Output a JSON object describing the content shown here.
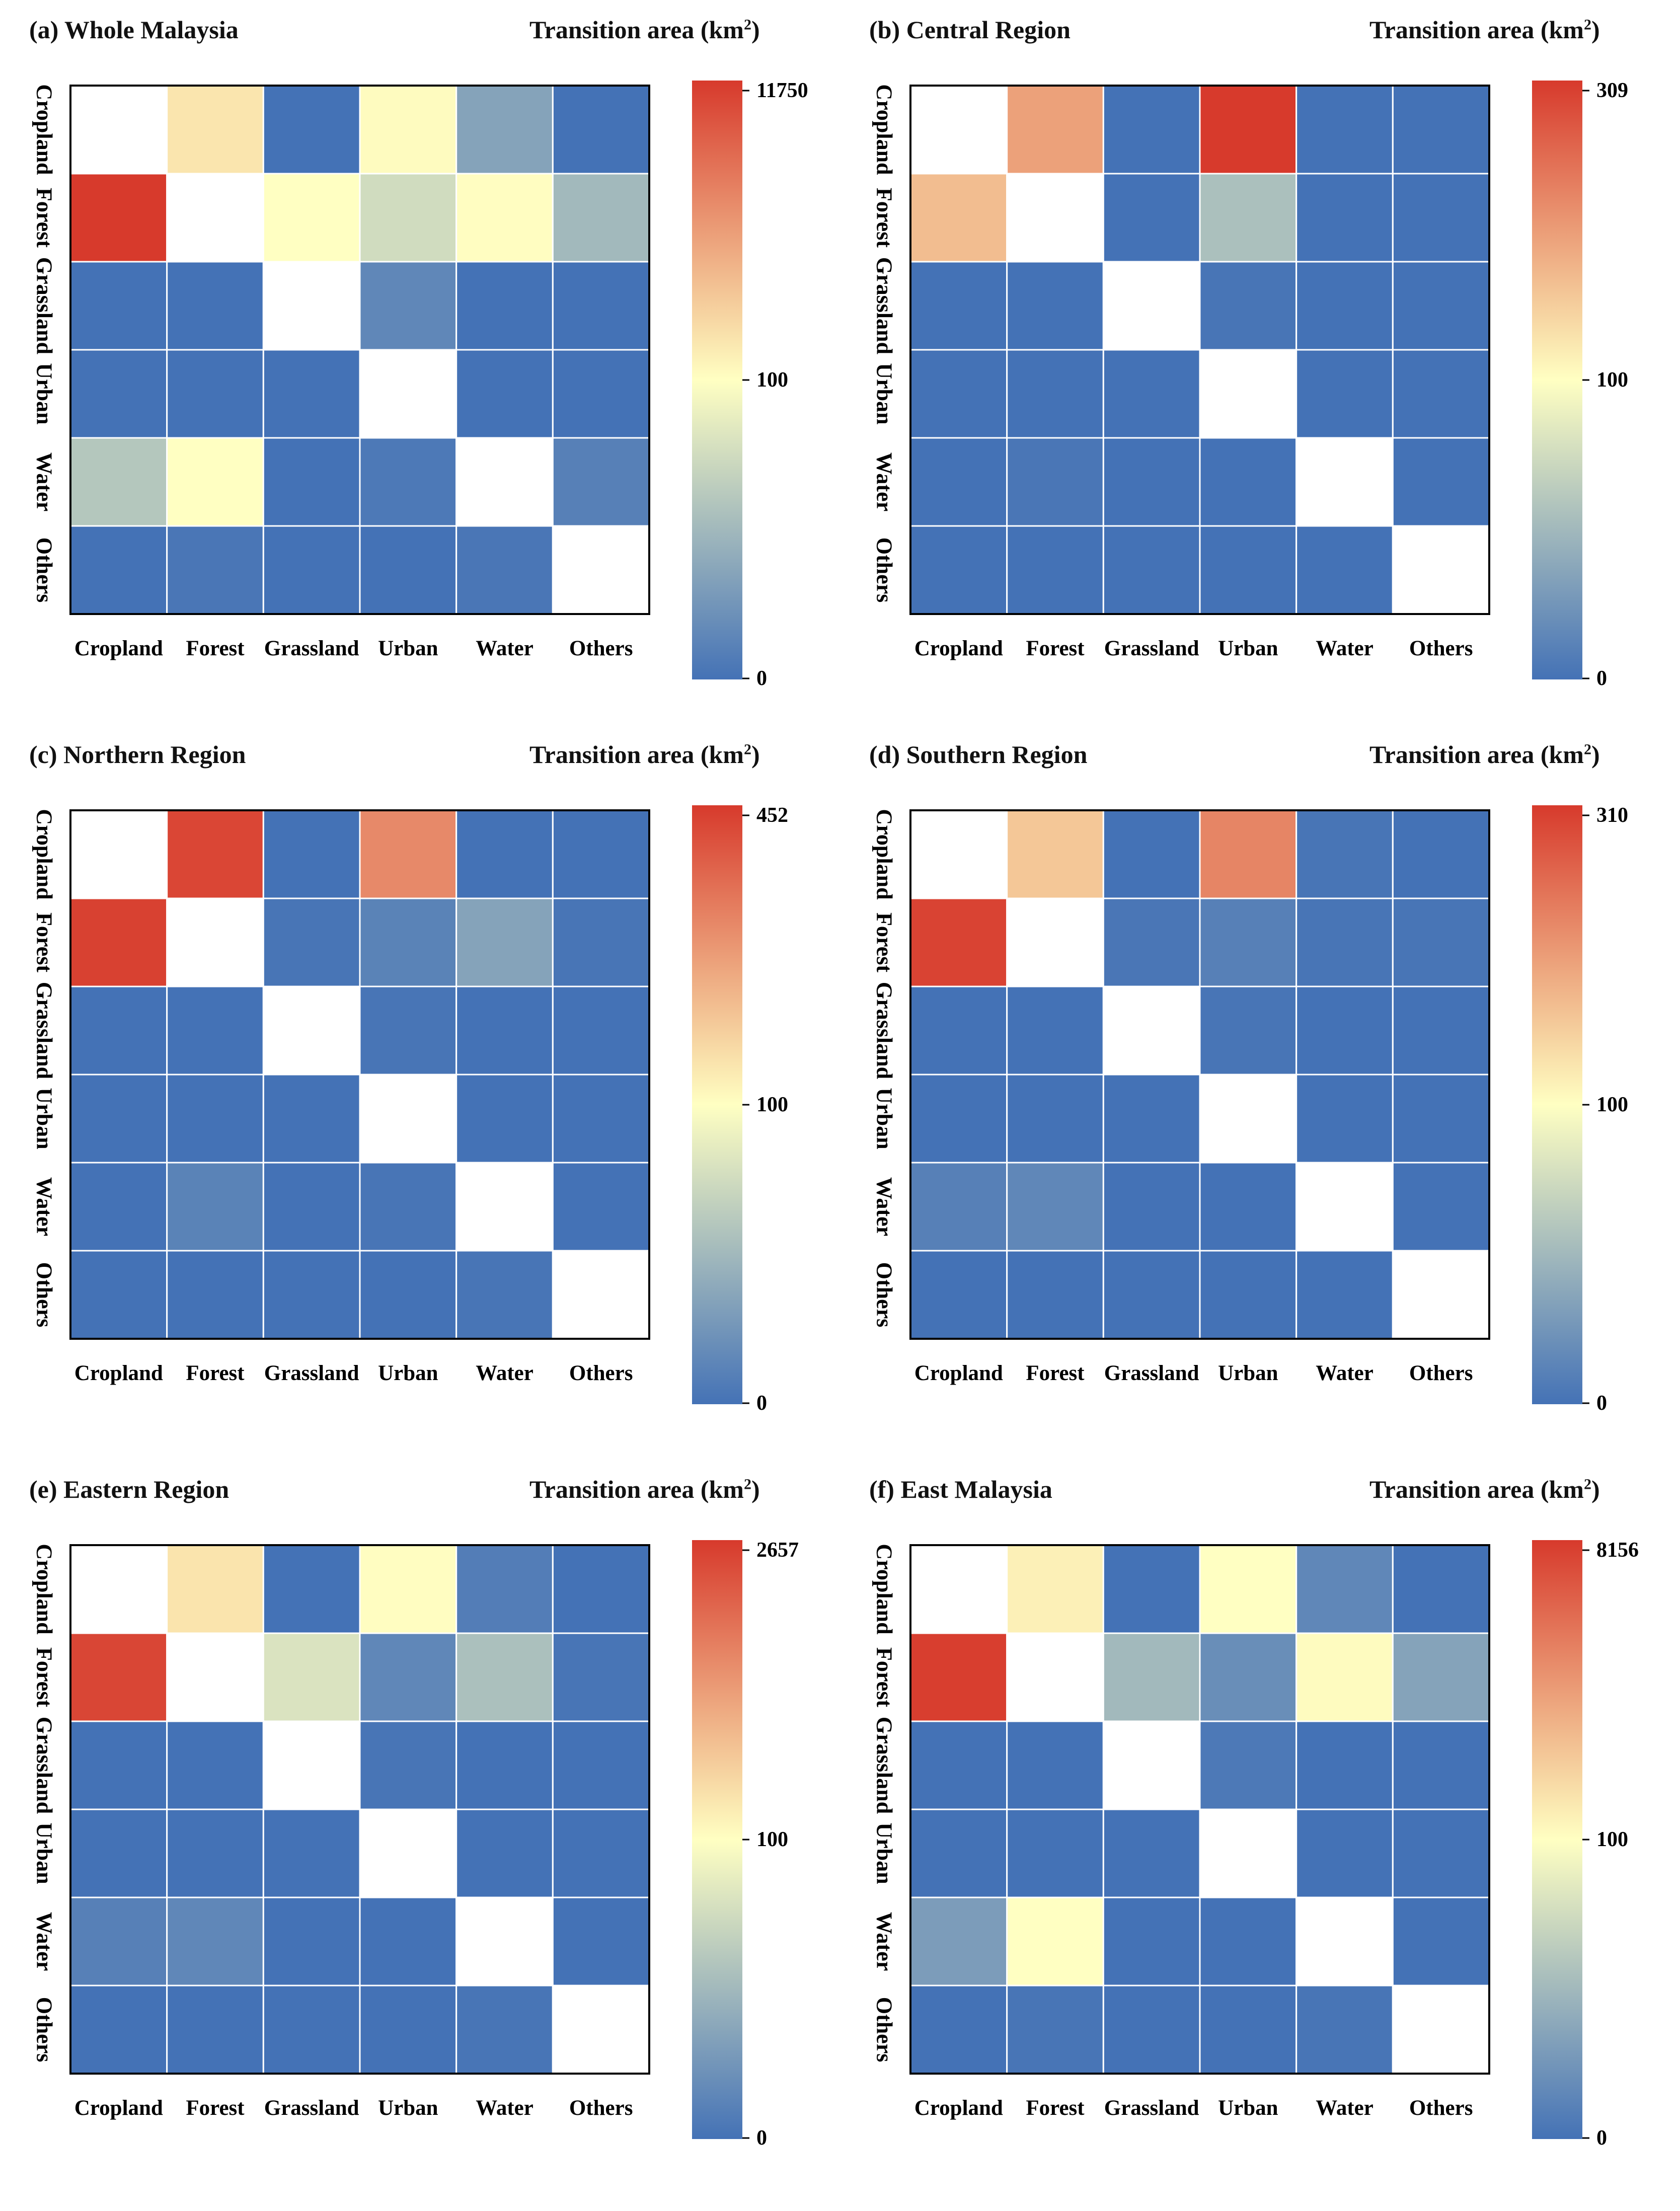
{
  "legend_title": "Transition area (km",
  "legend_unit_exp": "2",
  "legend_title_close": ")",
  "colors": {
    "low": "#4472B6",
    "mid": "#FFFFC2",
    "high": "#D73A2C",
    "diagonal": "#FFFFFF",
    "grid": "#FFFFFF",
    "frame": "#000000"
  },
  "chart_data": [
    {
      "type": "heatmap",
      "title": "(a) Whole Malaysia",
      "rows": [
        "Cropland",
        "Forest",
        "Grassland",
        "Urban",
        "Water",
        "Others"
      ],
      "columns": [
        "Cropland",
        "Forest",
        "Grassland",
        "Urban",
        "Water",
        "Others"
      ],
      "colorbar": {
        "min_label": "0",
        "mid_label": "100",
        "max_label": "11750",
        "min": 0,
        "mid": 100,
        "max": 11750
      },
      "values": [
        [
          null,
          1650,
          0,
          330,
          35,
          0
        ],
        [
          11750,
          null,
          120,
          75,
          200,
          50
        ],
        [
          0,
          0,
          null,
          15,
          0,
          0
        ],
        [
          0,
          0,
          0,
          null,
          0,
          0
        ],
        [
          60,
          110,
          0,
          5,
          null,
          10
        ],
        [
          0,
          3,
          0,
          0,
          3,
          null
        ]
      ]
    },
    {
      "type": "heatmap",
      "title": "(b) Central Region",
      "rows": [
        "Cropland",
        "Forest",
        "Grassland",
        "Urban",
        "Water",
        "Others"
      ],
      "columns": [
        "Cropland",
        "Forest",
        "Grassland",
        "Urban",
        "Water",
        "Others"
      ],
      "colorbar": {
        "min_label": "0",
        "mid_label": "100",
        "max_label": "309",
        "min": 0,
        "mid": 100,
        "max": 309
      },
      "values": [
        [
          null,
          200,
          0,
          309,
          0,
          0
        ],
        [
          170,
          null,
          0,
          55,
          0,
          0
        ],
        [
          0,
          0,
          null,
          2,
          0,
          0
        ],
        [
          0,
          0,
          0,
          null,
          0,
          0
        ],
        [
          0,
          3,
          0,
          0,
          null,
          0
        ],
        [
          0,
          0,
          0,
          0,
          0,
          null
        ]
      ]
    },
    {
      "type": "heatmap",
      "title": "(c) Northern Region",
      "rows": [
        "Cropland",
        "Forest",
        "Grassland",
        "Urban",
        "Water",
        "Others"
      ],
      "columns": [
        "Cropland",
        "Forest",
        "Grassland",
        "Urban",
        "Water",
        "Others"
      ],
      "colorbar": {
        "min_label": "0",
        "mid_label": "100",
        "max_label": "452",
        "min": 0,
        "mid": 100,
        "max": 452
      },
      "values": [
        [
          null,
          430,
          0,
          310,
          0,
          0
        ],
        [
          440,
          null,
          2,
          12,
          35,
          2
        ],
        [
          0,
          0,
          null,
          2,
          0,
          0
        ],
        [
          0,
          0,
          0,
          null,
          0,
          0
        ],
        [
          0,
          12,
          0,
          2,
          null,
          0
        ],
        [
          0,
          0,
          0,
          0,
          2,
          null
        ]
      ]
    },
    {
      "type": "heatmap",
      "title": "(d) Southern Region",
      "rows": [
        "Cropland",
        "Forest",
        "Grassland",
        "Urban",
        "Water",
        "Others"
      ],
      "columns": [
        "Cropland",
        "Forest",
        "Grassland",
        "Urban",
        "Water",
        "Others"
      ],
      "colorbar": {
        "min_label": "0",
        "mid_label": "100",
        "max_label": "310",
        "min": 0,
        "mid": 100,
        "max": 310
      },
      "values": [
        [
          null,
          160,
          0,
          230,
          2,
          0
        ],
        [
          300,
          null,
          3,
          10,
          2,
          2
        ],
        [
          0,
          0,
          null,
          2,
          0,
          0
        ],
        [
          0,
          0,
          0,
          null,
          0,
          0
        ],
        [
          10,
          15,
          0,
          0,
          null,
          0
        ],
        [
          0,
          0,
          0,
          0,
          0,
          null
        ]
      ]
    },
    {
      "type": "heatmap",
      "title": "(e) Eastern Region",
      "rows": [
        "Cropland",
        "Forest",
        "Grassland",
        "Urban",
        "Water",
        "Others"
      ],
      "columns": [
        "Cropland",
        "Forest",
        "Grassland",
        "Urban",
        "Water",
        "Others"
      ],
      "colorbar": {
        "min_label": "0",
        "mid_label": "100",
        "max_label": "2657",
        "min": 0,
        "mid": 100,
        "max": 2657
      },
      "values": [
        [
          null,
          450,
          0,
          125,
          8,
          0
        ],
        [
          2500,
          null,
          80,
          15,
          55,
          2
        ],
        [
          0,
          0,
          null,
          2,
          0,
          0
        ],
        [
          0,
          0,
          0,
          null,
          0,
          0
        ],
        [
          10,
          15,
          0,
          0,
          null,
          0
        ],
        [
          0,
          0,
          0,
          0,
          2,
          null
        ]
      ]
    },
    {
      "type": "heatmap",
      "title": "(f) East Malaysia",
      "rows": [
        "Cropland",
        "Forest",
        "Grassland",
        "Urban",
        "Water",
        "Others"
      ],
      "columns": [
        "Cropland",
        "Forest",
        "Grassland",
        "Urban",
        "Water",
        "Others"
      ],
      "colorbar": {
        "min_label": "0",
        "mid_label": "100",
        "max_label": "8156",
        "min": 0,
        "mid": 100,
        "max": 8156
      },
      "values": [
        [
          null,
          700,
          0,
          110,
          15,
          0
        ],
        [
          8000,
          null,
          50,
          20,
          250,
          35
        ],
        [
          0,
          0,
          null,
          5,
          0,
          0
        ],
        [
          0,
          0,
          0,
          null,
          0,
          0
        ],
        [
          30,
          115,
          0,
          0,
          null,
          0
        ],
        [
          0,
          2,
          0,
          0,
          2,
          null
        ]
      ]
    }
  ]
}
